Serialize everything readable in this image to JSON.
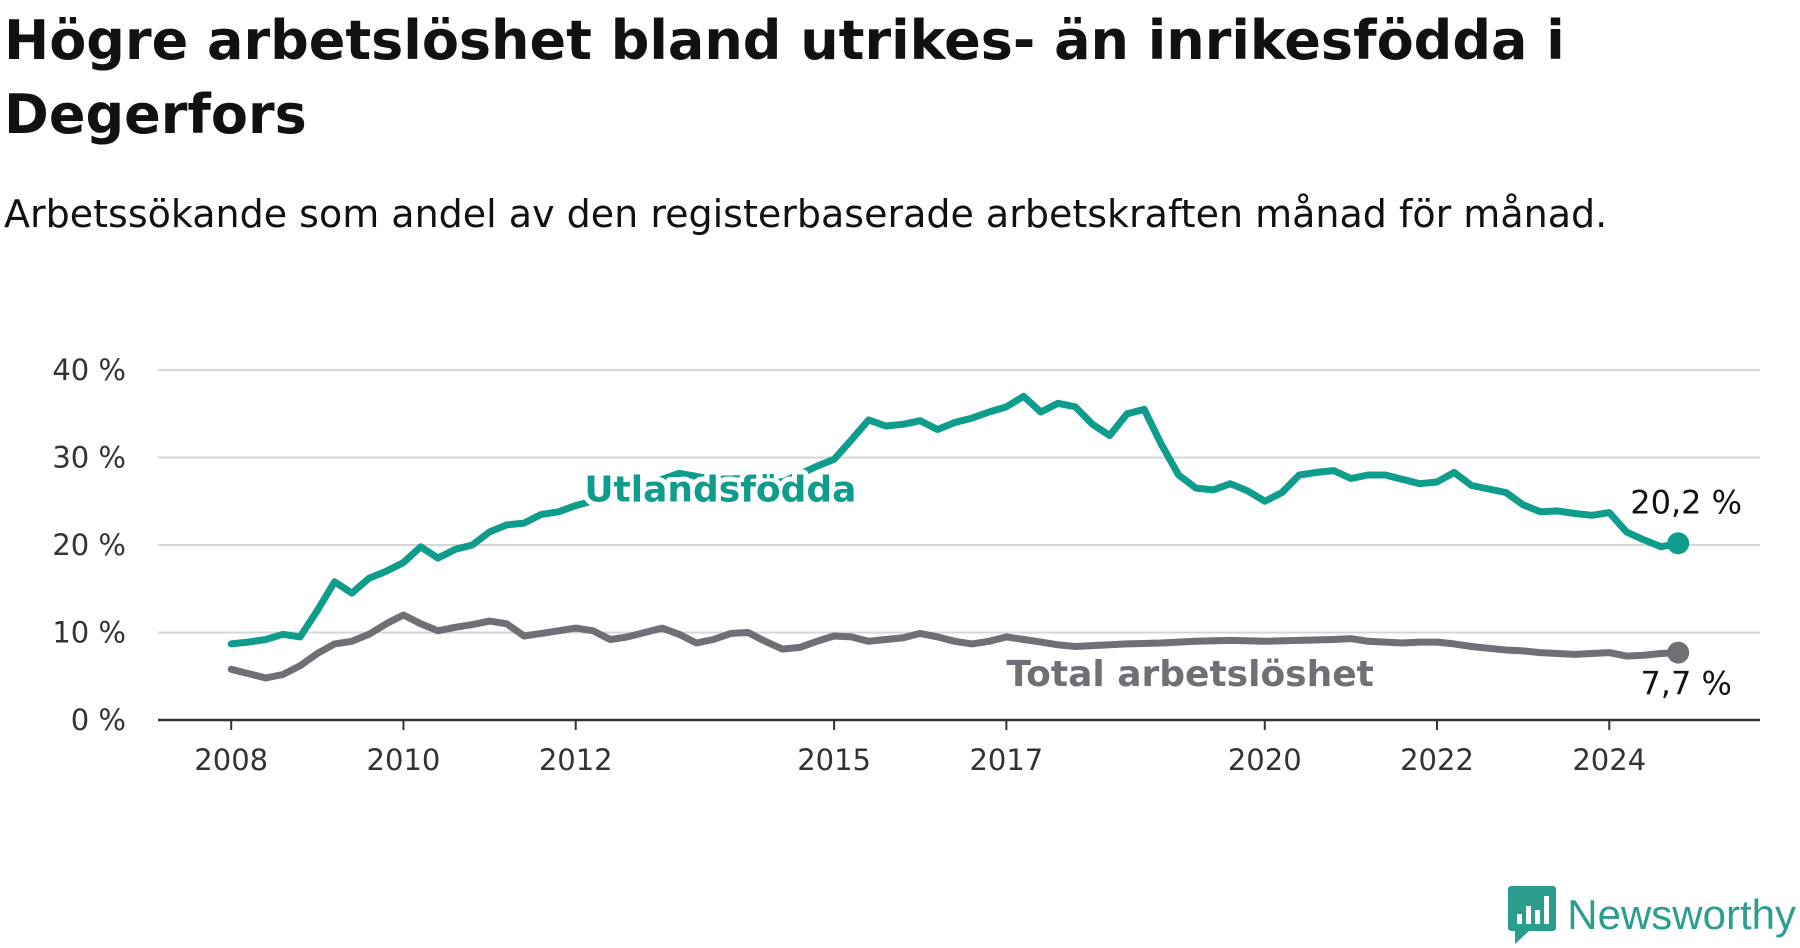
{
  "chart_data": {
    "type": "line",
    "title": "Högre arbetslöshet bland utrikes- än inrikesfödda i Degerfors",
    "subtitle": "Arbetssökande som andel av den registerbaserade arbetskraften månad för månad.",
    "x_ticks": [
      "2008",
      "2010",
      "2012",
      "2015",
      "2017",
      "2020",
      "2022",
      "2024"
    ],
    "x_tick_values": [
      2008,
      2010,
      2012,
      2015,
      2017,
      2020,
      2022,
      2024
    ],
    "xlim": [
      2007.15,
      2025.75
    ],
    "y_ticks": [
      "0 %",
      "10 %",
      "20 %",
      "30 %",
      "40 %"
    ],
    "y_tick_values": [
      0,
      10,
      20,
      30,
      40
    ],
    "ylim": [
      0,
      40
    ],
    "grid": true,
    "series": [
      {
        "name": "Utlandsfödda",
        "color": "#0e9c8c",
        "end_label": "20,2 %",
        "x": [
          2008.0,
          2008.2,
          2008.4,
          2008.6,
          2008.8,
          2009.0,
          2009.2,
          2009.4,
          2009.6,
          2009.8,
          2010.0,
          2010.2,
          2010.4,
          2010.6,
          2010.8,
          2011.0,
          2011.2,
          2011.4,
          2011.6,
          2011.8,
          2012.0,
          2012.4,
          2012.8,
          2013.2,
          2013.6,
          2014.0,
          2014.4,
          2014.8,
          2015.0,
          2015.2,
          2015.4,
          2015.6,
          2015.8,
          2016.0,
          2016.2,
          2016.4,
          2016.6,
          2016.8,
          2017.0,
          2017.2,
          2017.4,
          2017.6,
          2017.8,
          2018.0,
          2018.2,
          2018.4,
          2018.6,
          2018.8,
          2019.0,
          2019.2,
          2019.4,
          2019.6,
          2019.8,
          2020.0,
          2020.2,
          2020.4,
          2020.6,
          2020.8,
          2021.0,
          2021.2,
          2021.4,
          2021.6,
          2021.8,
          2022.0,
          2022.2,
          2022.4,
          2022.6,
          2022.8,
          2023.0,
          2023.2,
          2023.4,
          2023.6,
          2023.8,
          2024.0,
          2024.2,
          2024.4,
          2024.6,
          2024.8
        ],
        "values": [
          8.7,
          8.9,
          9.2,
          9.8,
          9.5,
          12.5,
          15.8,
          14.5,
          16.2,
          17.0,
          18.0,
          19.8,
          18.5,
          19.5,
          20.0,
          21.5,
          22.3,
          22.5,
          23.5,
          23.8,
          24.5,
          25.6,
          26.8,
          28.2,
          27.5,
          27.6,
          27.2,
          29.0,
          29.8,
          32.0,
          34.3,
          33.6,
          33.8,
          34.2,
          33.2,
          34.0,
          34.5,
          35.2,
          35.8,
          37.0,
          35.2,
          36.2,
          35.8,
          33.8,
          32.5,
          35.0,
          35.5,
          31.5,
          28.0,
          26.5,
          26.3,
          27.0,
          26.2,
          25.0,
          26.0,
          28.0,
          28.3,
          28.5,
          27.6,
          28.0,
          28.0,
          27.5,
          27.0,
          27.2,
          28.3,
          26.8,
          26.4,
          26.0,
          24.6,
          23.8,
          23.9,
          23.6,
          23.4,
          23.7,
          21.5,
          20.6,
          19.8,
          20.2
        ]
      },
      {
        "name": "Total arbetslöshet",
        "color": "#6f6f76",
        "end_label": "7,7 %",
        "x": [
          2008.0,
          2008.2,
          2008.4,
          2008.6,
          2008.8,
          2009.0,
          2009.2,
          2009.4,
          2009.6,
          2009.8,
          2010.0,
          2010.2,
          2010.4,
          2010.6,
          2010.8,
          2011.0,
          2011.2,
          2011.4,
          2011.6,
          2011.8,
          2012.0,
          2012.2,
          2012.4,
          2012.6,
          2012.8,
          2013.0,
          2013.2,
          2013.4,
          2013.6,
          2013.8,
          2014.0,
          2014.2,
          2014.4,
          2014.6,
          2014.8,
          2015.0,
          2015.2,
          2015.4,
          2015.6,
          2015.8,
          2016.0,
          2016.2,
          2016.4,
          2016.6,
          2016.8,
          2017.0,
          2017.2,
          2017.4,
          2017.6,
          2017.8,
          2018.0,
          2018.4,
          2018.8,
          2019.2,
          2019.6,
          2020.0,
          2020.4,
          2020.8,
          2021.0,
          2021.2,
          2021.4,
          2021.6,
          2021.8,
          2022.0,
          2022.2,
          2022.4,
          2022.6,
          2022.8,
          2023.0,
          2023.2,
          2023.4,
          2023.6,
          2023.8,
          2024.0,
          2024.2,
          2024.4,
          2024.6,
          2024.8
        ],
        "values": [
          5.8,
          5.3,
          4.8,
          5.2,
          6.2,
          7.6,
          8.7,
          9.0,
          9.8,
          11.0,
          12.0,
          11.0,
          10.2,
          10.6,
          10.9,
          11.3,
          11.0,
          9.6,
          9.9,
          10.2,
          10.5,
          10.2,
          9.2,
          9.5,
          10.0,
          10.5,
          9.8,
          8.8,
          9.2,
          9.9,
          10.0,
          9.0,
          8.1,
          8.3,
          9.0,
          9.6,
          9.5,
          9.0,
          9.2,
          9.4,
          9.9,
          9.5,
          9.0,
          8.7,
          9.0,
          9.5,
          9.2,
          8.9,
          8.6,
          8.4,
          8.5,
          8.7,
          8.8,
          9.0,
          9.1,
          9.0,
          9.1,
          9.2,
          9.3,
          9.0,
          8.9,
          8.8,
          8.9,
          8.9,
          8.7,
          8.4,
          8.2,
          8.0,
          7.9,
          7.7,
          7.6,
          7.5,
          7.6,
          7.7,
          7.3,
          7.4,
          7.6,
          7.7
        ]
      }
    ]
  },
  "brand": {
    "name": "Newsworthy"
  },
  "colors": {
    "grid": "#d6d6d6",
    "axis": "#333333",
    "brand": "#2a9d8f"
  }
}
